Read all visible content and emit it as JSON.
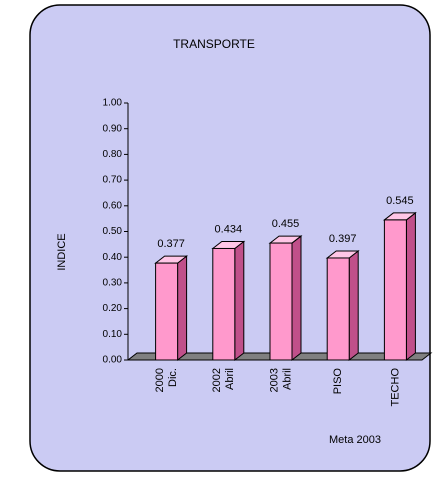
{
  "chart_data": {
    "type": "bar3d",
    "title": "TRANSPORTE",
    "y_label": "INDICE",
    "annotation": "Meta 2003",
    "categories": [
      [
        "2000",
        "Dic."
      ],
      [
        "2002",
        "Abril"
      ],
      [
        "2003",
        "Abril"
      ],
      [
        "PISO"
      ],
      [
        "TECHO"
      ]
    ],
    "values": [
      0.377,
      0.434,
      0.455,
      0.397,
      0.545
    ],
    "color": "#ff99cc",
    "ylim": [
      0,
      1
    ],
    "yticks": [
      {
        "value": 0,
        "label": "0.00"
      },
      {
        "value": 0.1,
        "label": "0.10"
      },
      {
        "value": 0.2,
        "label": "0.20"
      },
      {
        "value": 0.3,
        "label": "0.30"
      },
      {
        "value": 0.4,
        "label": "0.40"
      },
      {
        "value": 0.5,
        "label": "0.50"
      },
      {
        "value": 0.6,
        "label": "0.60"
      },
      {
        "value": 0.7,
        "label": "0.70"
      },
      {
        "value": 0.8,
        "label": "0.80"
      },
      {
        "value": 0.9,
        "label": "0.90"
      },
      {
        "value": 1,
        "label": "1.00"
      }
    ]
  }
}
